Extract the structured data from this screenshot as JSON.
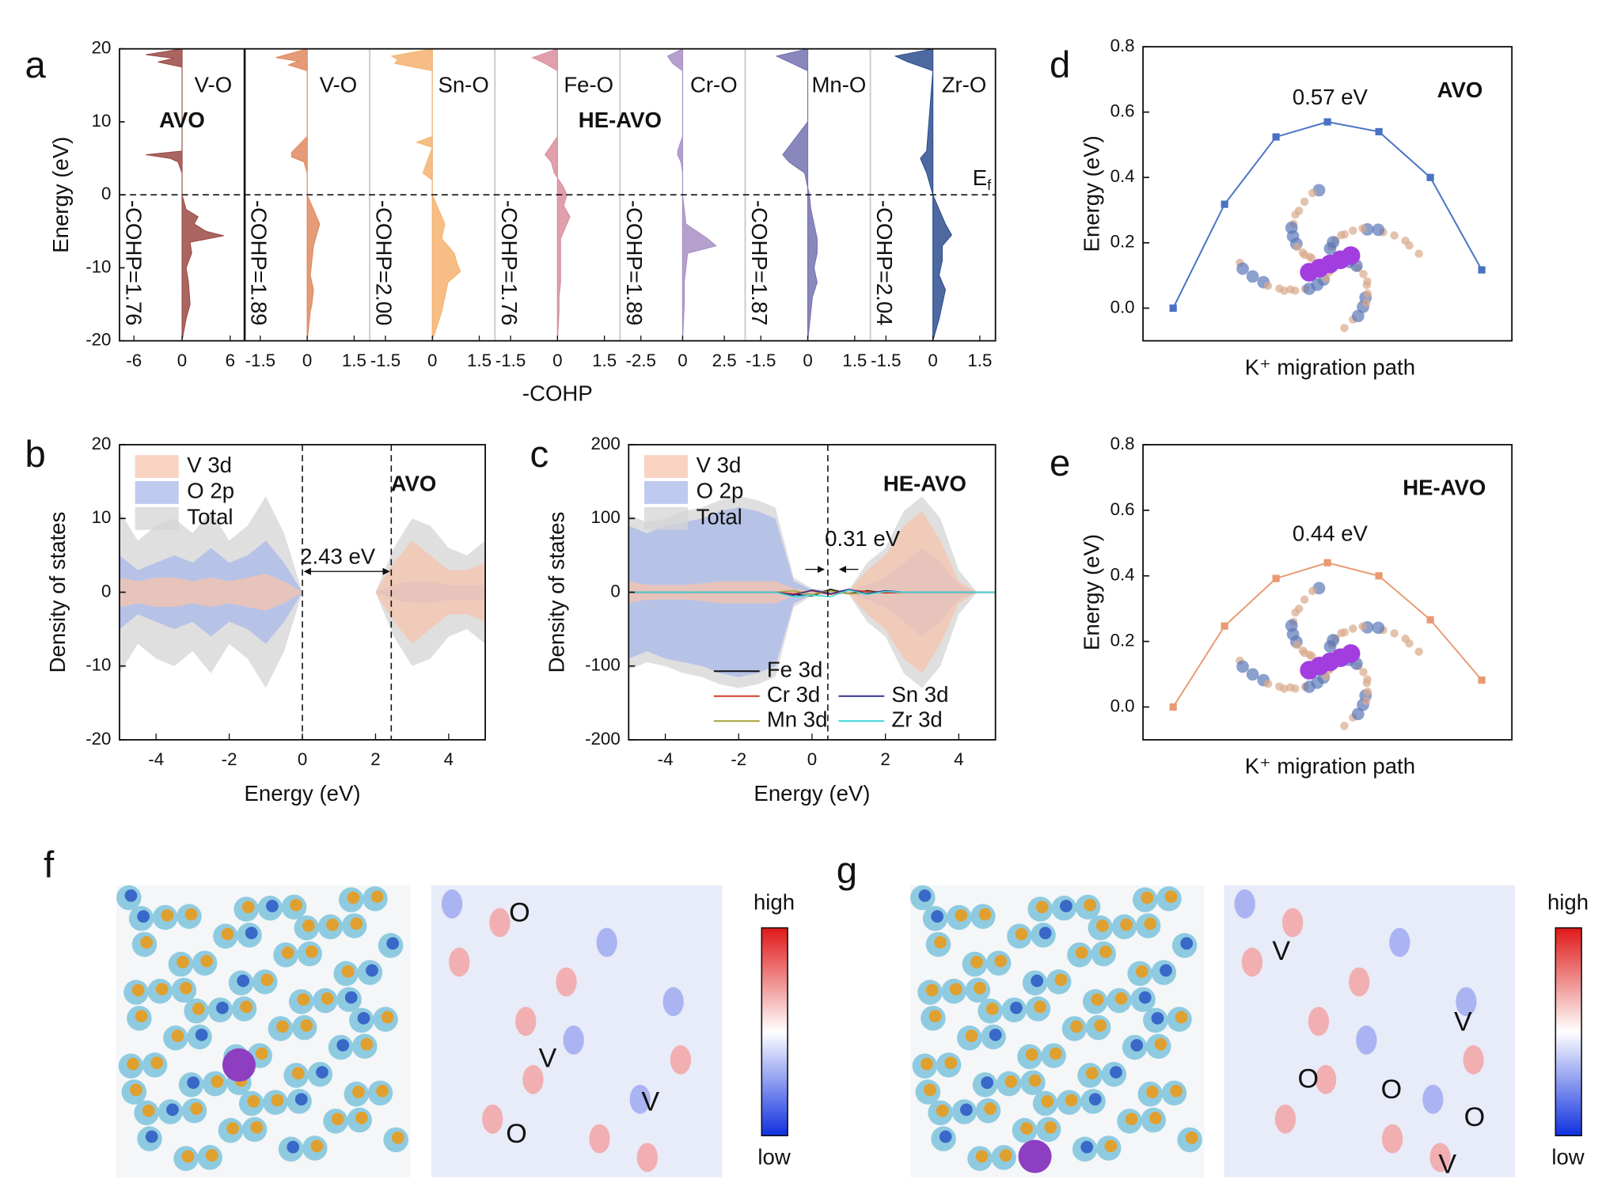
{
  "chart_data": [
    {
      "type": "cohp",
      "label": "a",
      "ylabel": "Energy (eV)",
      "xlabel": "-COHP",
      "ylim": [
        -20,
        20
      ],
      "yticks": [
        -20,
        -10,
        0,
        10,
        20
      ],
      "fermi_label": {
        "main": "E",
        "sub": "f"
      },
      "group_labels": [
        "AVO",
        "HE-AVO"
      ],
      "panels": [
        {
          "name": "V-O",
          "icohp": "-COHP=1.76",
          "color": "#9b4a44",
          "xlim": [
            -7.8,
            7.8
          ],
          "xticks": [
            -6,
            0,
            6
          ],
          "energy": [
            20,
            19.2,
            18.7,
            18.2,
            17.5,
            16,
            6,
            5.5,
            5,
            4.5,
            3,
            0,
            -2,
            -3,
            -4,
            -5,
            -5.6,
            -6.5,
            -8,
            -10,
            -12,
            -15,
            -17,
            -20
          ],
          "values": [
            0,
            -4.5,
            -1,
            -3,
            0,
            0,
            0,
            -4.5,
            -1.5,
            -0.5,
            0,
            0,
            0.5,
            2,
            1.5,
            3,
            5.2,
            1,
            1.2,
            0.5,
            0.8,
            1,
            0.5,
            0
          ]
        },
        {
          "name": "V-O",
          "icohp": "-COHP=1.89",
          "color": "#e0895f",
          "xlim": [
            -2,
            2
          ],
          "xticks": [
            -1.5,
            0,
            1.5
          ],
          "energy": [
            20,
            18.8,
            18.3,
            17.8,
            17,
            8,
            5.8,
            5.2,
            4.5,
            3,
            0,
            -1,
            -3,
            -4,
            -5.5,
            -7,
            -9,
            -11,
            -13,
            -15,
            -16,
            -20
          ],
          "values": [
            0,
            -1.0,
            -0.3,
            -0.6,
            0,
            0,
            -0.5,
            -0.5,
            -0.1,
            0,
            0,
            0.1,
            0.3,
            0.4,
            0.3,
            0.2,
            0.15,
            0.1,
            0.2,
            0.15,
            0.1,
            0
          ]
        },
        {
          "name": "Sn-O",
          "icohp": "-COHP=2.00",
          "color": "#f5b36e",
          "xlim": [
            -2,
            2
          ],
          "xticks": [
            -1.5,
            0,
            1.5
          ],
          "energy": [
            20,
            19,
            18.5,
            18,
            17,
            8,
            7.2,
            6.5,
            3,
            2,
            0,
            -2,
            -4,
            -6,
            -8,
            -9.5,
            -10.5,
            -12,
            -14,
            -16,
            -20
          ],
          "values": [
            0,
            -1.3,
            -1.1,
            -1.2,
            0,
            0,
            -0.5,
            0,
            -0.3,
            0,
            0,
            0.2,
            0.4,
            0.3,
            0.7,
            0.8,
            0.9,
            0.5,
            0.4,
            0.3,
            0
          ]
        },
        {
          "name": "Fe-O",
          "icohp": "-COHP=1.76",
          "color": "#d98e9c",
          "xlim": [
            -2,
            2
          ],
          "xticks": [
            -1.5,
            0,
            1.5
          ],
          "energy": [
            20,
            18.8,
            18,
            17,
            8,
            5.5,
            4.5,
            3,
            1,
            0,
            -1.5,
            -3,
            -4,
            -6,
            -8,
            -10,
            -12,
            -14,
            -16,
            -20
          ],
          "values": [
            0,
            -0.8,
            -0.4,
            0,
            0,
            -0.4,
            -0.2,
            -0.1,
            0.2,
            0.3,
            0.2,
            0.4,
            0.3,
            0.1,
            0.1,
            0.1,
            0.1,
            0.05,
            0.05,
            0
          ]
        },
        {
          "name": "Cr-O",
          "icohp": "-COHP=1.89",
          "color": "#a88fc4",
          "xlim": [
            -3.75,
            3.75
          ],
          "xticks": [
            -2.5,
            0,
            2.5
          ],
          "energy": [
            20,
            19,
            18,
            17,
            8,
            6,
            5.5,
            4.5,
            3,
            0,
            -2,
            -4,
            -6,
            -7,
            -8,
            -10,
            -12,
            -15,
            -20
          ],
          "values": [
            0,
            -0.9,
            -0.6,
            0,
            0,
            -0.3,
            -0.3,
            -0.1,
            0,
            0,
            0.1,
            0.2,
            1.5,
            2.0,
            0.3,
            0.2,
            0.1,
            0.1,
            0
          ]
        },
        {
          "name": "Mn-O",
          "icohp": "-COHP=1.87",
          "color": "#7572b0",
          "xlim": [
            -2,
            2
          ],
          "xticks": [
            -1.5,
            0,
            1.5
          ],
          "energy": [
            20,
            19,
            18.2,
            17,
            10,
            5.5,
            4.5,
            3,
            0,
            -2,
            -4,
            -6,
            -8,
            -10,
            -12,
            -14,
            -16,
            -20
          ],
          "values": [
            0,
            -1.0,
            -0.6,
            0,
            0,
            -0.8,
            -0.6,
            -0.1,
            0.05,
            0.1,
            0.2,
            0.3,
            0.3,
            0.2,
            0.3,
            0.15,
            0.1,
            0
          ]
        },
        {
          "name": "Zr-O",
          "icohp": "-COHP=2.04",
          "color": "#2e4f8f",
          "xlim": [
            -2,
            2
          ],
          "xticks": [
            -1.5,
            0,
            1.5
          ],
          "energy": [
            20,
            19,
            18.2,
            17,
            6,
            5,
            4,
            3,
            0,
            -2,
            -4,
            -5.5,
            -7,
            -9,
            -11,
            -13,
            -15,
            -17,
            -20
          ],
          "values": [
            0,
            -1.2,
            -0.8,
            0,
            -0.2,
            -0.4,
            -0.3,
            -0.2,
            0,
            0.2,
            0.4,
            0.6,
            0.3,
            0.3,
            0.2,
            0.4,
            0.3,
            0.2,
            0
          ]
        }
      ]
    },
    {
      "type": "dos",
      "label": "b",
      "title": "AVO",
      "xlabel": "Energy (eV)",
      "ylabel": "Density of states",
      "xlim": [
        -5,
        5
      ],
      "xticks": [
        -4,
        -2,
        0,
        2,
        4
      ],
      "ylim": [
        -20,
        20
      ],
      "yticks": [
        -20,
        -10,
        0,
        10,
        20
      ],
      "vlines": [
        0,
        2.43
      ],
      "gap_label": "2.43 eV",
      "x": [
        -5,
        -4.5,
        -4,
        -3.5,
        -3,
        -2.5,
        -2,
        -1.5,
        -1,
        -0.5,
        0,
        0.5,
        1,
        1.5,
        2,
        2.5,
        3,
        3.5,
        4,
        4.5,
        5
      ],
      "series": [
        {
          "name": "V 3d",
          "color": "#f6c4ad",
          "values": [
            2,
            1.5,
            2,
            2,
            1.5,
            2,
            1.5,
            2,
            2.5,
            1.5,
            0,
            0,
            0,
            0,
            0,
            4,
            7,
            5,
            3,
            3,
            4
          ]
        },
        {
          "name": "O 2p",
          "color": "#aab8ea",
          "values": [
            5,
            3,
            4,
            5,
            4,
            6,
            4,
            5,
            7,
            4,
            0,
            0,
            0,
            0,
            0,
            1,
            1.5,
            1.5,
            1,
            1,
            1
          ]
        },
        {
          "name": "Total",
          "color": "#d4d4d4",
          "values": [
            11,
            7,
            9,
            10,
            8,
            11,
            7,
            9,
            13,
            8,
            0,
            0,
            0,
            0,
            0,
            6,
            10,
            9,
            6,
            5,
            7
          ]
        }
      ]
    },
    {
      "type": "dos",
      "label": "c",
      "title": "HE-AVO",
      "xlabel": "Energy (eV)",
      "ylabel": "Density of states",
      "xlim": [
        -5,
        5
      ],
      "xticks": [
        -4,
        -2,
        0,
        2,
        4
      ],
      "ylim": [
        -200,
        200
      ],
      "yticks": [
        -200,
        -100,
        0,
        100,
        200
      ],
      "vlines": [
        0.43
      ],
      "gap_label": "0.31 eV",
      "x": [
        -5,
        -4.5,
        -4,
        -3.5,
        -3,
        -2.5,
        -2,
        -1.5,
        -1,
        -0.5,
        0,
        0.5,
        1,
        1.5,
        2,
        2.5,
        3,
        3.5,
        4,
        4.5,
        5
      ],
      "series": [
        {
          "name": "V 3d",
          "color": "#f6c4ad",
          "values": [
            15,
            10,
            10,
            10,
            12,
            15,
            15,
            15,
            15,
            5,
            2,
            2,
            2,
            30,
            50,
            90,
            110,
            70,
            15,
            0,
            0
          ]
        },
        {
          "name": "O 2p",
          "color": "#aab8ea",
          "values": [
            90,
            80,
            90,
            95,
            100,
            110,
            115,
            110,
            100,
            15,
            3,
            2,
            2,
            10,
            20,
            40,
            60,
            40,
            10,
            0,
            0
          ]
        },
        {
          "name": "Total",
          "color": "#d4d4d4",
          "values": [
            105,
            95,
            100,
            110,
            115,
            125,
            130,
            125,
            115,
            20,
            5,
            3,
            3,
            40,
            60,
            110,
            130,
            100,
            30,
            0,
            0
          ]
        }
      ],
      "lines": [
        {
          "name": "Fe 3d",
          "color": "#111111",
          "values": [
            0,
            0,
            0,
            0,
            0,
            0,
            0,
            0,
            0,
            -3,
            -5,
            4,
            -2,
            2,
            -1,
            0,
            0,
            0,
            0,
            0,
            0
          ]
        },
        {
          "name": "Cr 3d",
          "color": "#d03a2a",
          "values": [
            0,
            0,
            0,
            0,
            0,
            0,
            0,
            0,
            0,
            -2,
            2,
            -3,
            3,
            1,
            -1,
            0,
            0,
            0,
            0,
            0,
            0
          ]
        },
        {
          "name": "Mn 3d",
          "color": "#a5a03a",
          "values": [
            0,
            0,
            0,
            0,
            0,
            0,
            0,
            0,
            0,
            2,
            -3,
            2,
            -2,
            -1,
            1,
            0,
            0,
            0,
            0,
            0,
            0
          ]
        },
        {
          "name": "Sn 3d",
          "color": "#33338f",
          "values": [
            0,
            0,
            0,
            0,
            0,
            0,
            0,
            0,
            0,
            -4,
            3,
            -2,
            4,
            -2,
            2,
            0,
            0,
            0,
            0,
            0,
            0
          ]
        },
        {
          "name": "Zr 3d",
          "color": "#3fd6d6",
          "values": [
            0,
            0,
            0,
            0,
            0,
            0,
            0,
            0,
            0,
            -6,
            -4,
            -6,
            3,
            -3,
            1,
            0,
            0,
            0,
            0,
            0,
            0
          ]
        }
      ]
    },
    {
      "type": "line",
      "label": "d",
      "title": "AVO",
      "annotation": "0.57 eV",
      "xlabel": "K⁺ migration path",
      "ylabel": "Energy (eV)",
      "color": "#4a72c4",
      "categories": [
        null,
        null,
        null,
        null,
        null,
        null,
        null
      ],
      "values": [
        0,
        0.318,
        0.524,
        0.57,
        0.54,
        0.4,
        0.117
      ],
      "ylim": [
        -0.1,
        0.8
      ],
      "yticks": [
        {
          "value": 0,
          "label": "0.0"
        },
        0.2,
        0.4,
        0.6,
        0.8
      ]
    },
    {
      "type": "line",
      "label": "e",
      "title": "HE-AVO",
      "annotation": "0.44 eV",
      "xlabel": "K⁺ migration path",
      "ylabel": "Energy (eV)",
      "color": "#e89a72",
      "categories": [
        null,
        null,
        null,
        null,
        null,
        null,
        null
      ],
      "values": [
        0,
        0.247,
        0.392,
        0.44,
        0.4,
        0.266,
        0.082
      ],
      "ylim": [
        -0.1,
        0.8
      ],
      "yticks": [
        {
          "value": 0,
          "label": "0.0"
        },
        0.2,
        0.4,
        0.6,
        0.8
      ]
    }
  ],
  "images": [
    {
      "label": "f",
      "annotations": [
        "O",
        "V",
        "V",
        "O"
      ],
      "colorbar": {
        "high": "high",
        "low": "low"
      }
    },
    {
      "label": "g",
      "annotations": [
        "V",
        "V",
        "O",
        "O",
        "O",
        "V"
      ],
      "colorbar": {
        "high": "high",
        "low": "low"
      }
    }
  ]
}
